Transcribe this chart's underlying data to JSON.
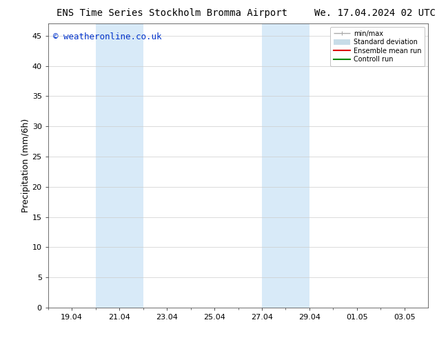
{
  "title_left": "ENS Time Series Stockholm Bromma Airport",
  "title_right": "We. 17.04.2024 02 UTC",
  "ylabel": "Precipitation (mm/6h)",
  "ylabel_fontsize": 9,
  "title_fontsize": 10,
  "background_color": "#ffffff",
  "plot_bg_color": "#ffffff",
  "ymin": 0,
  "ymax": 47,
  "yticks": [
    0,
    5,
    10,
    15,
    20,
    25,
    30,
    35,
    40,
    45
  ],
  "xtick_labels": [
    "19.04",
    "21.04",
    "23.04",
    "25.04",
    "27.04",
    "29.04",
    "01.05",
    "03.05"
  ],
  "shaded_band1": {
    "xmin": 20.0,
    "xmax": 22.0,
    "color": "#d8eaf8"
  },
  "shaded_band2": {
    "xmin": 27.0,
    "xmax": 29.0,
    "color": "#d8eaf8"
  },
  "watermark_text": "© weatheronline.co.uk",
  "watermark_color": "#0033cc",
  "watermark_fontsize": 9,
  "legend_items": [
    {
      "label": "min/max",
      "color": "#aaaaaa",
      "lw": 1.0
    },
    {
      "label": "Standard deviation",
      "color": "#c8dce8",
      "lw": 6
    },
    {
      "label": "Ensemble mean run",
      "color": "#dd0000",
      "lw": 1.5
    },
    {
      "label": "Controll run",
      "color": "#008800",
      "lw": 1.5
    }
  ],
  "grid_color": "#cccccc",
  "spine_color": "#555555",
  "tick_labelsize": 8
}
